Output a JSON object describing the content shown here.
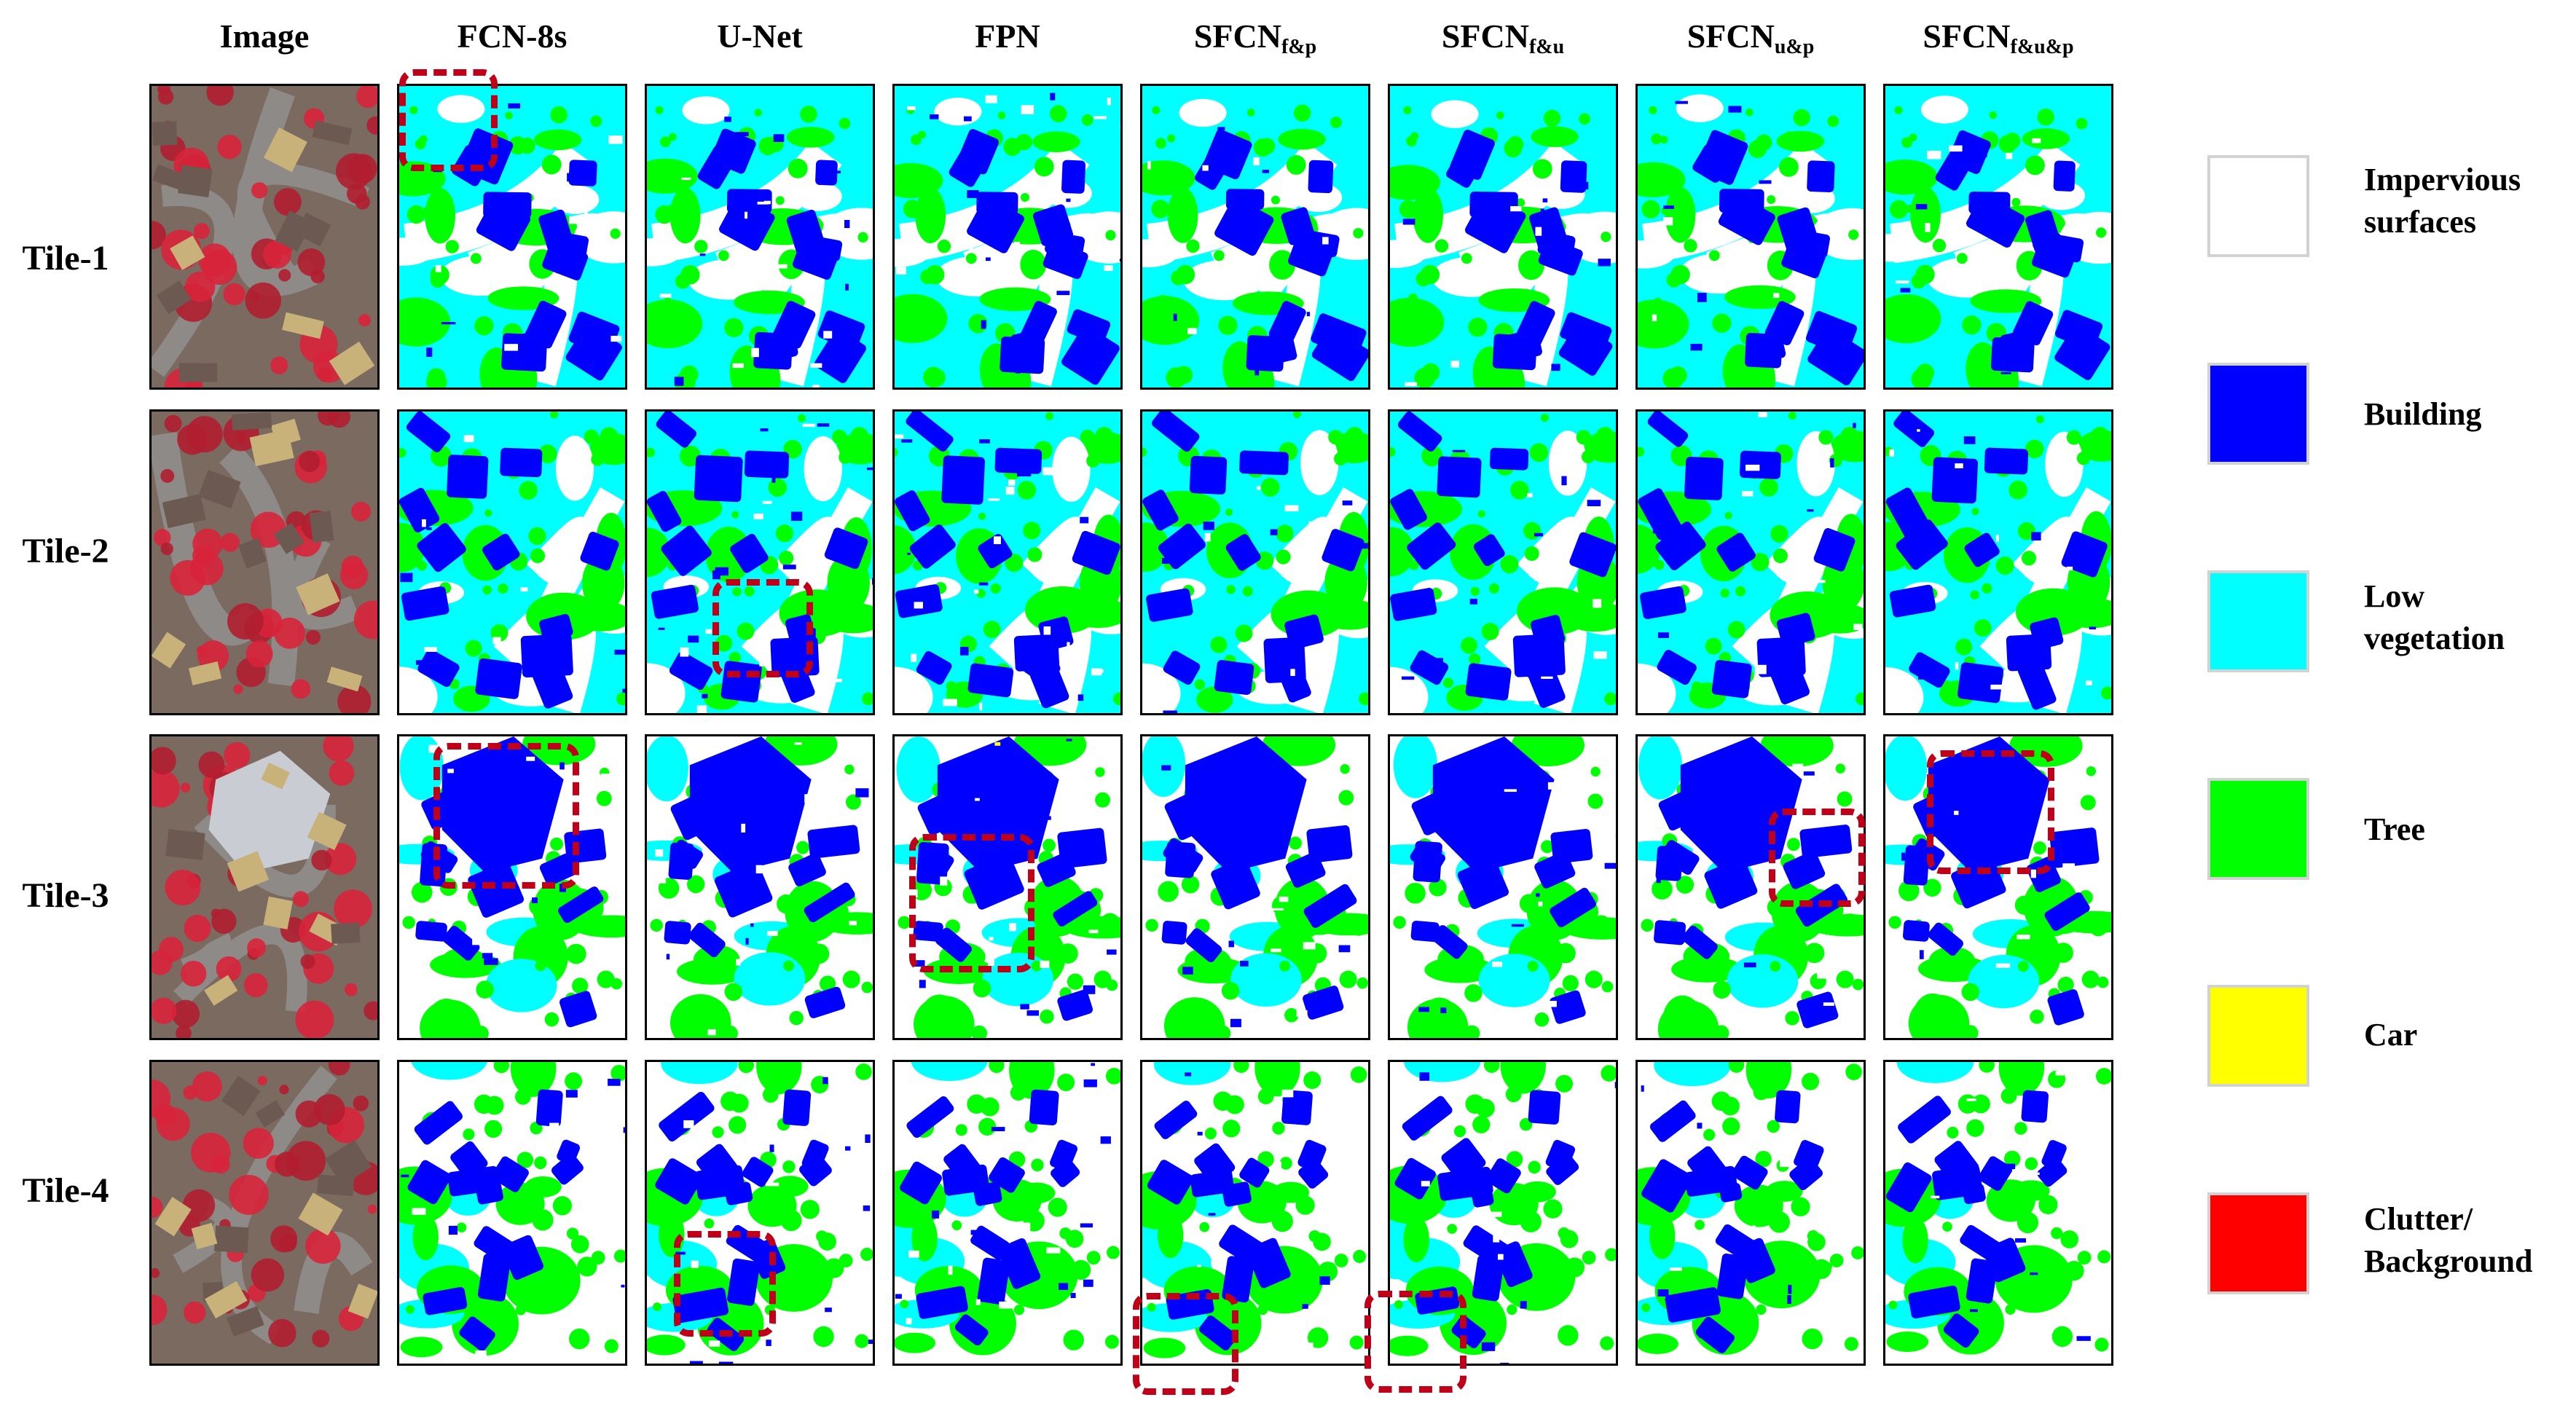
{
  "columns": {
    "image": "Image",
    "fcn8s": "FCN-8s",
    "unet": "U-Net",
    "fpn": "FPN",
    "sfcn_fp": {
      "base": "SFCN",
      "sub": "f&p"
    },
    "sfcn_fu": {
      "base": "SFCN",
      "sub": "f&u"
    },
    "sfcn_up": {
      "base": "SFCN",
      "sub": "u&p"
    },
    "sfcn_fup": {
      "base": "SFCN",
      "sub": "f&u&p"
    }
  },
  "rows": [
    "Tile-1",
    "Tile-2",
    "Tile-3",
    "Tile-4"
  ],
  "legend": [
    {
      "label_1": "Impervious",
      "label_2": "surfaces",
      "color": "#ffffff"
    },
    {
      "label_1": "Building",
      "label_2": "",
      "color": "#0000ff"
    },
    {
      "label_1": "Low",
      "label_2": "vegetation",
      "color": "#00ffff"
    },
    {
      "label_1": "Tree",
      "label_2": "",
      "color": "#00ff00"
    },
    {
      "label_1": "Car",
      "label_2": "",
      "color": "#ffff00"
    },
    {
      "label_1": "Clutter/",
      "label_2": "Background",
      "color": "#ff0000"
    }
  ],
  "colors": {
    "impervious": "#ffffff",
    "building": "#0000ff",
    "low_vegetation": "#00ffff",
    "tree": "#00ff00",
    "car": "#ffff00",
    "clutter": "#ff0000",
    "highlight": "#c00018"
  }
}
